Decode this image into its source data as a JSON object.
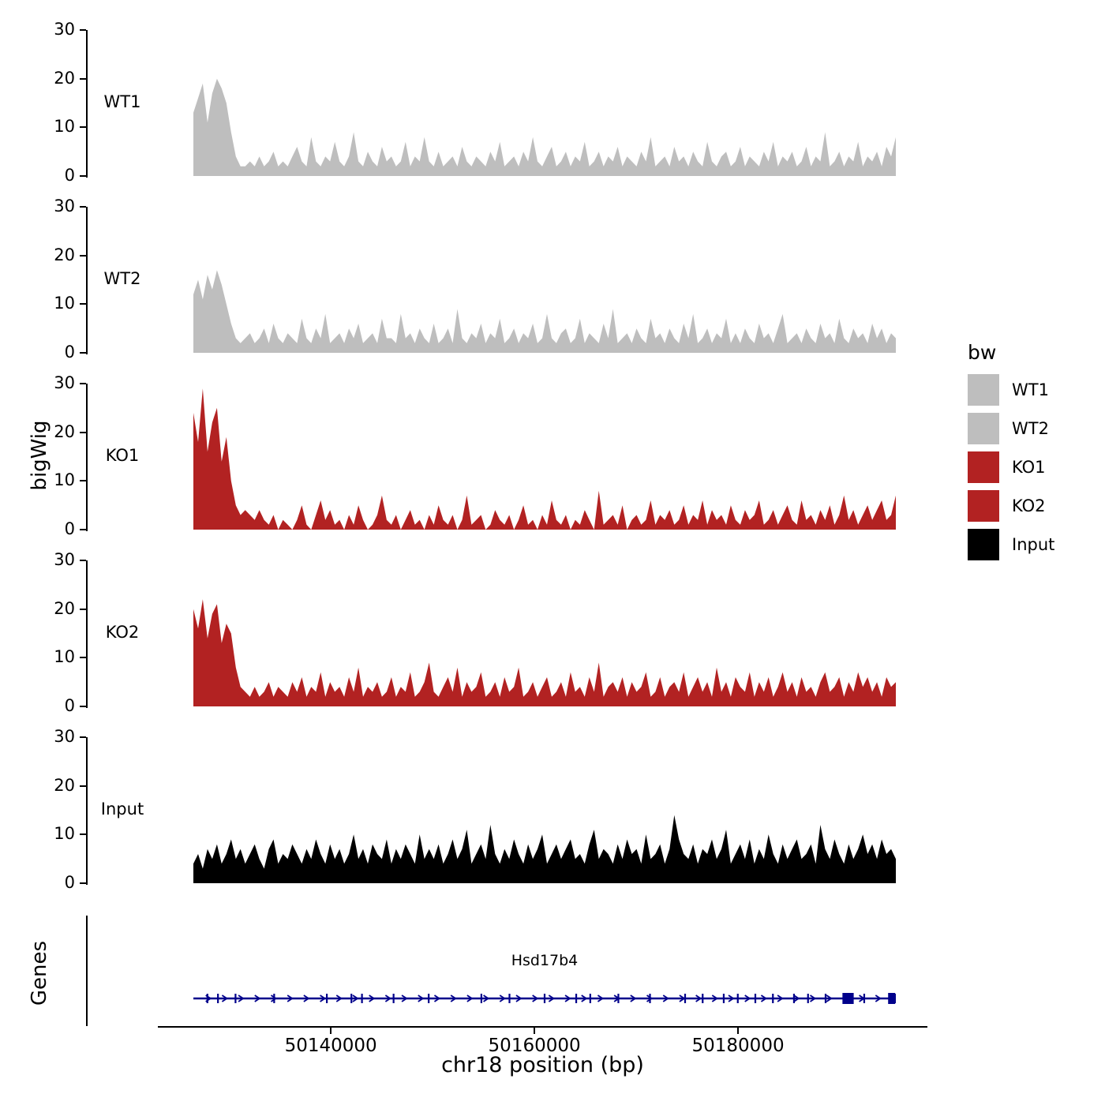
{
  "labels": {
    "y_axis": "bigWig",
    "genes_axis": "Genes",
    "x_axis": "chr18 position (bp)"
  },
  "legend": {
    "title": "bw",
    "entries": [
      {
        "label": "WT1",
        "color": "#BEBEBE"
      },
      {
        "label": "WT2",
        "color": "#BEBEBE"
      },
      {
        "label": "KO1",
        "color": "#B22222"
      },
      {
        "label": "KO2",
        "color": "#B22222"
      },
      {
        "label": "Input",
        "color": "#000000"
      }
    ]
  },
  "chart_data": {
    "type": "area",
    "title": "",
    "xlabel": "chr18 position (bp)",
    "ylabel": "bigWig",
    "x_range": [
      50126500,
      50195500
    ],
    "ylim": [
      0,
      30
    ],
    "y_ticks": [
      0,
      10,
      20,
      30
    ],
    "x_ticks": [
      {
        "bp": 50140000,
        "label": "50140000"
      },
      {
        "bp": 50160000,
        "label": "50160000"
      },
      {
        "bp": 50180000,
        "label": "50180000"
      }
    ],
    "grid": false,
    "legend_position": "right",
    "tracks": [
      {
        "name": "WT1",
        "color": "#BEBEBE",
        "values": [
          13,
          16,
          19,
          11,
          17,
          20,
          18,
          15,
          9,
          4,
          2,
          2,
          3,
          2,
          4,
          2,
          3,
          5,
          2,
          3,
          2,
          4,
          6,
          3,
          2,
          8,
          3,
          2,
          4,
          3,
          7,
          3,
          2,
          4,
          9,
          3,
          2,
          5,
          3,
          2,
          6,
          3,
          4,
          2,
          3,
          7,
          2,
          4,
          3,
          8,
          3,
          2,
          5,
          2,
          3,
          4,
          2,
          6,
          3,
          2,
          4,
          3,
          2,
          5,
          3,
          7,
          2,
          3,
          4,
          2,
          5,
          3,
          8,
          3,
          2,
          4,
          6,
          2,
          3,
          5,
          2,
          4,
          3,
          7,
          2,
          3,
          5,
          2,
          4,
          3,
          6,
          2,
          4,
          3,
          2,
          5,
          3,
          8,
          2,
          3,
          4,
          2,
          6,
          3,
          4,
          2,
          5,
          3,
          2,
          7,
          3,
          2,
          4,
          5,
          2,
          3,
          6,
          2,
          4,
          3,
          2,
          5,
          3,
          7,
          2,
          4,
          3,
          5,
          2,
          3,
          6,
          2,
          4,
          3,
          9,
          2,
          3,
          5,
          2,
          4,
          3,
          7,
          2,
          4,
          3,
          5,
          2,
          6,
          4,
          8
        ]
      },
      {
        "name": "WT2",
        "color": "#BEBEBE",
        "values": [
          12,
          15,
          11,
          16,
          13,
          17,
          14,
          10,
          6,
          3,
          2,
          3,
          4,
          2,
          3,
          5,
          2,
          6,
          3,
          2,
          4,
          3,
          2,
          7,
          3,
          2,
          5,
          3,
          8,
          2,
          3,
          4,
          2,
          5,
          3,
          6,
          2,
          3,
          4,
          2,
          7,
          3,
          3,
          2,
          8,
          3,
          4,
          2,
          5,
          3,
          2,
          6,
          2,
          3,
          5,
          2,
          9,
          3,
          2,
          4,
          3,
          6,
          2,
          4,
          3,
          7,
          2,
          3,
          5,
          2,
          4,
          3,
          6,
          2,
          3,
          8,
          3,
          2,
          4,
          5,
          2,
          3,
          7,
          2,
          4,
          3,
          2,
          6,
          3,
          9,
          2,
          3,
          4,
          2,
          5,
          3,
          2,
          7,
          3,
          4,
          2,
          5,
          3,
          2,
          6,
          3,
          8,
          2,
          3,
          5,
          2,
          4,
          3,
          7,
          2,
          4,
          2,
          5,
          3,
          2,
          6,
          3,
          4,
          2,
          5,
          8,
          2,
          3,
          4,
          2,
          5,
          3,
          2,
          6,
          3,
          4,
          2,
          7,
          3,
          2,
          5,
          3,
          4,
          2,
          6,
          3,
          5,
          2,
          4,
          3
        ]
      },
      {
        "name": "KO1",
        "color": "#B22222",
        "values": [
          24,
          18,
          29,
          16,
          22,
          25,
          14,
          19,
          10,
          5,
          3,
          4,
          3,
          2,
          4,
          2,
          1,
          3,
          0,
          2,
          1,
          0,
          2,
          5,
          1,
          0,
          3,
          6,
          2,
          4,
          1,
          2,
          0,
          3,
          1,
          5,
          2,
          0,
          1,
          3,
          7,
          2,
          1,
          3,
          0,
          2,
          4,
          1,
          2,
          0,
          3,
          1,
          5,
          2,
          1,
          3,
          0,
          2,
          7,
          1,
          2,
          3,
          0,
          1,
          4,
          2,
          1,
          3,
          0,
          2,
          5,
          1,
          2,
          0,
          3,
          1,
          6,
          2,
          1,
          3,
          0,
          2,
          1,
          4,
          2,
          0,
          8,
          1,
          2,
          3,
          1,
          5,
          0,
          2,
          3,
          1,
          2,
          6,
          1,
          3,
          2,
          4,
          1,
          2,
          5,
          1,
          3,
          2,
          6,
          1,
          4,
          2,
          3,
          1,
          5,
          2,
          1,
          4,
          2,
          3,
          6,
          1,
          2,
          4,
          1,
          3,
          5,
          2,
          1,
          6,
          2,
          3,
          1,
          4,
          2,
          5,
          1,
          3,
          7,
          2,
          4,
          1,
          3,
          5,
          2,
          4,
          6,
          2,
          3,
          7
        ]
      },
      {
        "name": "KO2",
        "color": "#B22222",
        "values": [
          20,
          16,
          22,
          14,
          19,
          21,
          13,
          17,
          15,
          8,
          4,
          3,
          2,
          4,
          2,
          3,
          5,
          2,
          4,
          3,
          2,
          5,
          3,
          6,
          2,
          4,
          3,
          7,
          2,
          5,
          3,
          4,
          2,
          6,
          3,
          8,
          2,
          4,
          3,
          5,
          2,
          3,
          6,
          2,
          4,
          3,
          7,
          2,
          3,
          5,
          9,
          3,
          2,
          4,
          6,
          3,
          8,
          2,
          5,
          3,
          4,
          7,
          2,
          3,
          5,
          2,
          6,
          3,
          4,
          8,
          2,
          3,
          5,
          2,
          4,
          6,
          2,
          3,
          5,
          2,
          7,
          3,
          4,
          2,
          6,
          3,
          9,
          2,
          4,
          5,
          3,
          6,
          2,
          5,
          3,
          4,
          7,
          2,
          3,
          6,
          2,
          4,
          5,
          3,
          7,
          2,
          4,
          6,
          3,
          5,
          2,
          8,
          3,
          5,
          2,
          6,
          4,
          3,
          7,
          2,
          5,
          3,
          6,
          2,
          4,
          7,
          3,
          5,
          2,
          6,
          3,
          4,
          2,
          5,
          7,
          3,
          4,
          6,
          2,
          5,
          3,
          7,
          4,
          6,
          3,
          5,
          2,
          6,
          4,
          5
        ]
      },
      {
        "name": "Input",
        "color": "#000000",
        "values": [
          4,
          6,
          3,
          7,
          5,
          8,
          4,
          6,
          9,
          5,
          7,
          4,
          6,
          8,
          5,
          3,
          7,
          9,
          4,
          6,
          5,
          8,
          6,
          4,
          7,
          5,
          9,
          6,
          4,
          8,
          5,
          7,
          4,
          6,
          10,
          5,
          7,
          4,
          8,
          6,
          5,
          9,
          4,
          7,
          5,
          8,
          6,
          4,
          10,
          5,
          7,
          5,
          8,
          4,
          6,
          9,
          5,
          7,
          11,
          4,
          6,
          8,
          5,
          12,
          6,
          4,
          7,
          5,
          9,
          6,
          4,
          8,
          5,
          7,
          10,
          4,
          6,
          8,
          5,
          7,
          9,
          5,
          6,
          4,
          8,
          11,
          5,
          7,
          6,
          4,
          8,
          5,
          9,
          6,
          7,
          4,
          10,
          5,
          6,
          8,
          4,
          7,
          14,
          9,
          6,
          5,
          8,
          4,
          7,
          6,
          9,
          5,
          7,
          11,
          4,
          6,
          8,
          5,
          9,
          4,
          7,
          5,
          10,
          6,
          4,
          8,
          5,
          7,
          9,
          5,
          6,
          8,
          4,
          12,
          7,
          5,
          9,
          6,
          4,
          8,
          5,
          7,
          10,
          6,
          8,
          5,
          9,
          6,
          7,
          5
        ]
      }
    ],
    "gene": {
      "name": "Hsd17b4",
      "color": "#00008B",
      "strand": "+",
      "arrow_count": 42,
      "exon_ticks": [
        0.02,
        0.035,
        0.06,
        0.115,
        0.19,
        0.225,
        0.24,
        0.285,
        0.335,
        0.41,
        0.45,
        0.5,
        0.545,
        0.565,
        0.605,
        0.65,
        0.7,
        0.725,
        0.755,
        0.775,
        0.8,
        0.825,
        0.855,
        0.875,
        0.9,
        0.955,
        0.999
      ],
      "thick_boxes": [
        {
          "pos": 0.932,
          "width": 0.016
        },
        {
          "pos": 0.994,
          "width": 0.01
        }
      ]
    }
  }
}
